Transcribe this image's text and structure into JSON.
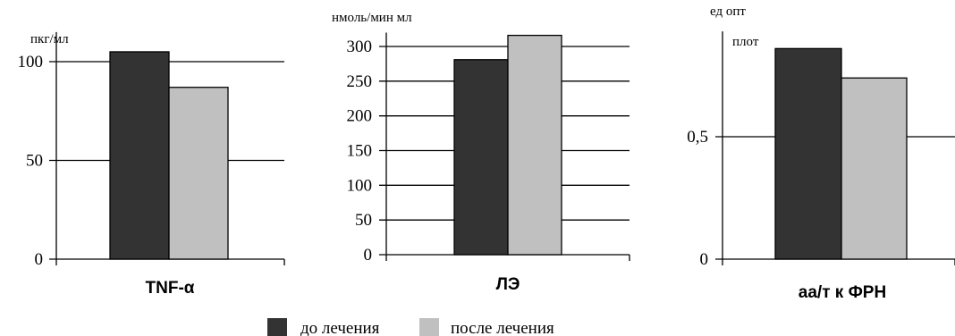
{
  "colors": {
    "before": "#333333",
    "after": "#c0c0c0",
    "outline": "#000000"
  },
  "legend": [
    {
      "label": "до лечения",
      "color": "#333333"
    },
    {
      "label": "после лечения",
      "color": "#c0c0c0"
    }
  ],
  "chart_data": [
    {
      "type": "bar",
      "title": "TNF-α",
      "ylabel": "пкг/мл",
      "ylabel2": "",
      "categories": [
        "TNF-α"
      ],
      "series": [
        {
          "name": "до лечения",
          "values": [
            105
          ]
        },
        {
          "name": "после лечения",
          "values": [
            87
          ]
        }
      ],
      "ylim": [
        0,
        115
      ],
      "yticks": [
        0,
        50,
        100
      ],
      "yticklabels": [
        "0",
        "50",
        "100"
      ],
      "grid": true,
      "legend_position": "bottom"
    },
    {
      "type": "bar",
      "title": "ЛЭ",
      "ylabel": "нмоль/мин мл",
      "ylabel2": "",
      "categories": [
        "ЛЭ"
      ],
      "series": [
        {
          "name": "до лечения",
          "values": [
            281
          ]
        },
        {
          "name": "после лечения",
          "values": [
            316
          ]
        }
      ],
      "ylim": [
        0,
        320
      ],
      "yticks": [
        0,
        50,
        100,
        150,
        200,
        250,
        300
      ],
      "yticklabels": [
        "0",
        "50",
        "100",
        "150",
        "200",
        "250",
        "300"
      ],
      "grid": true,
      "legend_position": "bottom"
    },
    {
      "type": "bar",
      "title": "аа/т к ФРН",
      "ylabel": "ед опт",
      "ylabel2": "плот",
      "categories": [
        "аа/т к ФРН"
      ],
      "series": [
        {
          "name": "до лечения",
          "values": [
            0.86
          ]
        },
        {
          "name": "после лечения",
          "values": [
            0.74
          ]
        }
      ],
      "ylim": [
        0,
        0.93
      ],
      "yticks": [
        0,
        0.5
      ],
      "yticklabels": [
        "0",
        "0,5"
      ],
      "grid": true,
      "legend_position": "bottom"
    }
  ]
}
